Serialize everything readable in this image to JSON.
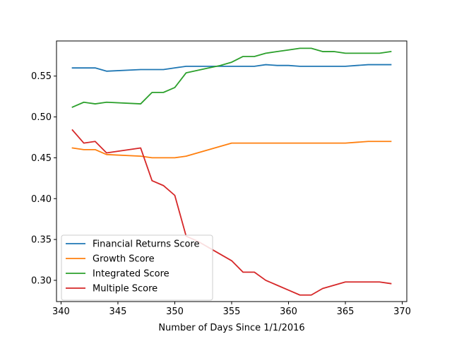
{
  "chart_data": {
    "type": "line",
    "xlabel": "Number of Days Since 1/1/2016",
    "ylabel": "",
    "xlim": [
      339.6,
      370.4
    ],
    "ylim": [
      0.274,
      0.593
    ],
    "xticks": [
      340,
      345,
      350,
      355,
      360,
      365,
      370
    ],
    "yticks": [
      0.3,
      0.35,
      0.4,
      0.45,
      0.5,
      0.55
    ],
    "xtick_labels": [
      "340",
      "345",
      "350",
      "355",
      "360",
      "365",
      "370"
    ],
    "ytick_labels": [
      "0.30",
      "0.35",
      "0.40",
      "0.45",
      "0.50",
      "0.55"
    ],
    "grid": false,
    "legend_position": "lower-left",
    "x": [
      341,
      342,
      343,
      344,
      347,
      348,
      349,
      350,
      351,
      352,
      353,
      354,
      355,
      356,
      357,
      358,
      359,
      360,
      361,
      362,
      363,
      364,
      365,
      366,
      367,
      368,
      369
    ],
    "series": [
      {
        "name": "Financial Returns Score",
        "color": "#1f77b4",
        "values": [
          0.56,
          0.56,
          0.56,
          0.556,
          0.558,
          0.558,
          0.558,
          0.56,
          0.562,
          0.562,
          0.562,
          0.562,
          0.562,
          0.562,
          0.562,
          0.564,
          0.563,
          0.563,
          0.562,
          0.562,
          0.562,
          0.562,
          0.562,
          0.563,
          0.564,
          0.564,
          0.564
        ]
      },
      {
        "name": "Growth Score",
        "color": "#ff7f0e",
        "values": [
          0.462,
          0.46,
          0.46,
          0.454,
          0.452,
          0.45,
          0.45,
          0.45,
          0.452,
          0.456,
          0.46,
          0.464,
          0.468,
          0.468,
          0.468,
          0.468,
          0.468,
          0.468,
          0.468,
          0.468,
          0.468,
          0.468,
          0.468,
          0.469,
          0.47,
          0.47,
          0.47
        ]
      },
      {
        "name": "Integrated Score",
        "color": "#2ca02c",
        "values": [
          0.512,
          0.518,
          0.516,
          0.518,
          0.516,
          0.53,
          0.53,
          0.536,
          0.554,
          0.557,
          0.56,
          0.563,
          0.567,
          0.574,
          0.574,
          0.578,
          0.58,
          0.582,
          0.584,
          0.584,
          0.58,
          0.58,
          0.578,
          0.578,
          0.578,
          0.578,
          0.58
        ]
      },
      {
        "name": "Multiple Score",
        "color": "#d62728",
        "values": [
          0.484,
          0.468,
          0.47,
          0.456,
          0.462,
          0.422,
          0.416,
          0.404,
          0.354,
          0.348,
          0.34,
          0.332,
          0.324,
          0.31,
          0.31,
          0.3,
          0.294,
          0.288,
          0.282,
          0.282,
          0.29,
          0.294,
          0.298,
          0.298,
          0.298,
          0.298,
          0.296
        ]
      }
    ]
  }
}
